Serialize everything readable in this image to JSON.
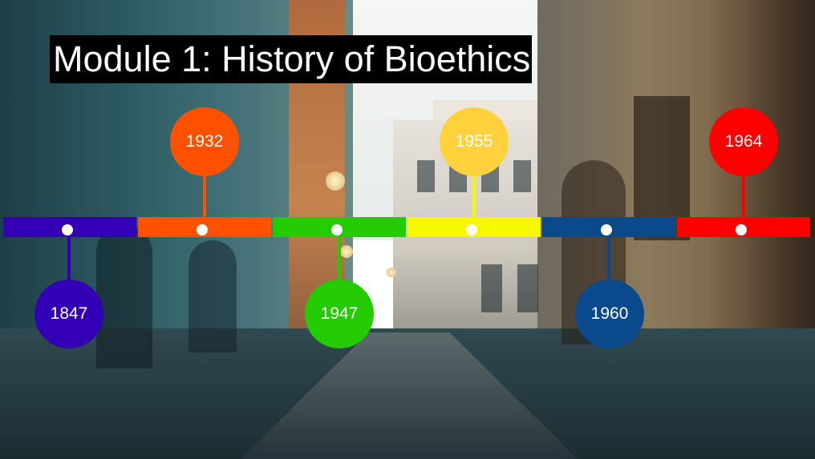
{
  "title": "Module 1: History of Bioethics",
  "timeline": [
    {
      "year": "1847",
      "color": "#3300b5",
      "position": "below"
    },
    {
      "year": "1932",
      "color": "#ff5100",
      "position": "above"
    },
    {
      "year": "1947",
      "color": "#22cc00",
      "position": "below"
    },
    {
      "year": "1955",
      "color": "#f7f700",
      "bubble_color": "#ffd23c",
      "position": "above"
    },
    {
      "year": "1960",
      "color": "#0a4a8c",
      "position": "below"
    },
    {
      "year": "1964",
      "color": "#ff0000",
      "position": "above"
    }
  ]
}
